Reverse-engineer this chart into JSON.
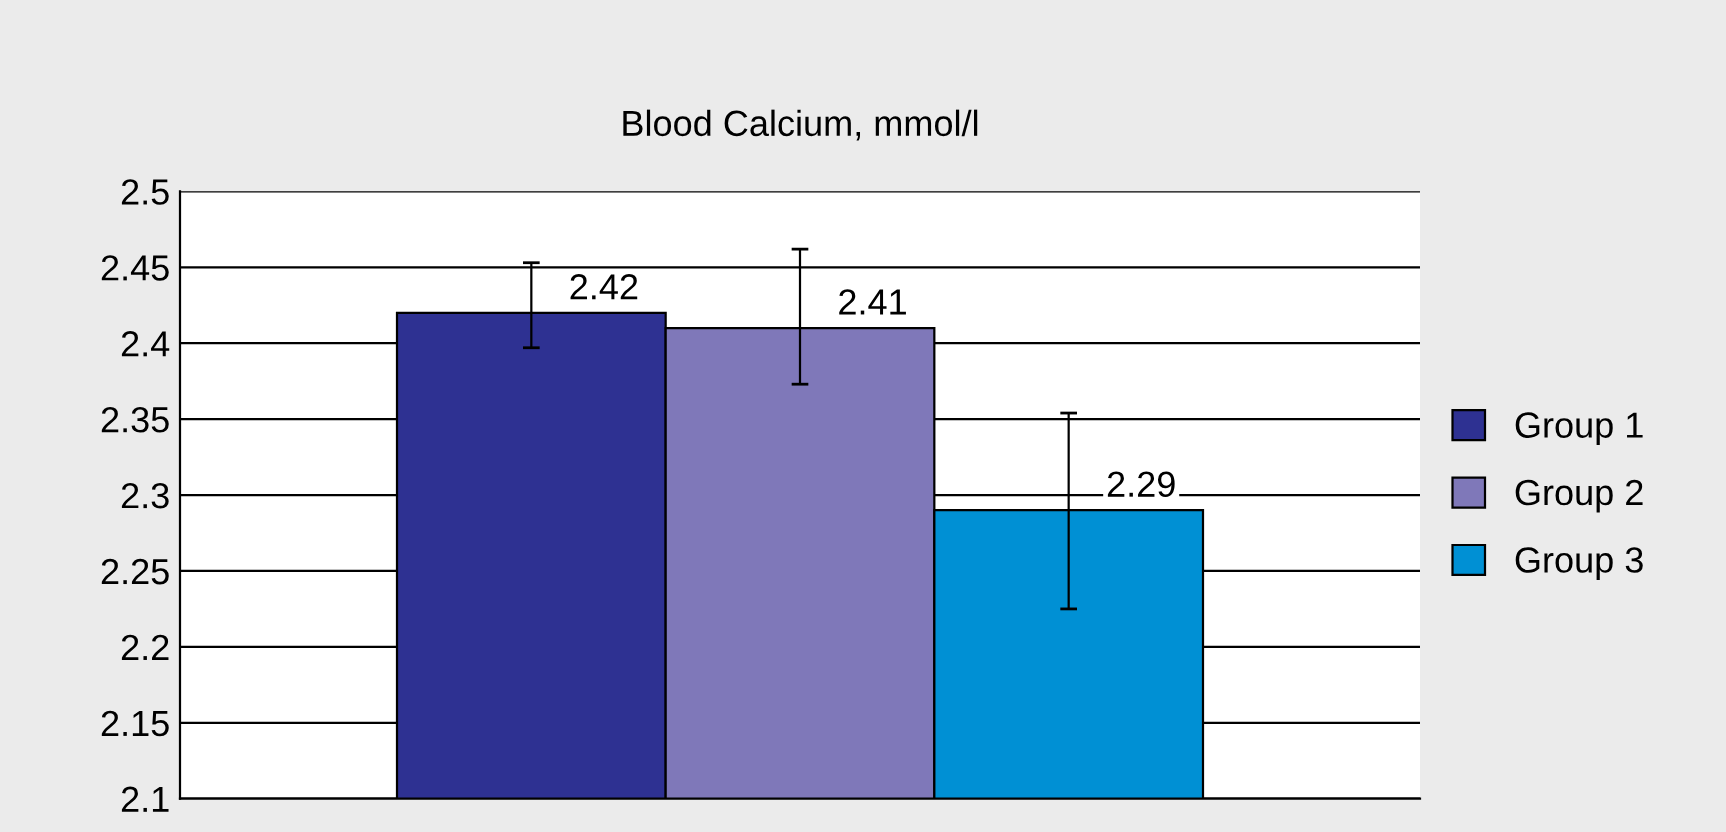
{
  "chart_data": {
    "type": "bar",
    "title": "Blood Calcium, mmol/l",
    "categories": [
      null
    ],
    "series": [
      {
        "name": "Group 1",
        "color": "#2e3192",
        "values": [
          2.42
        ],
        "value_labels": [
          "2.42"
        ],
        "errors": [
          [
            2.397,
            2.453
          ]
        ]
      },
      {
        "name": "Group 2",
        "color": "#7f78b9",
        "values": [
          2.41
        ],
        "value_labels": [
          "2.41"
        ],
        "errors": [
          [
            2.373,
            2.462
          ]
        ]
      },
      {
        "name": "Group 3",
        "color": "#0090d4",
        "values": [
          2.29
        ],
        "value_labels": [
          "2.29"
        ],
        "errors": [
          [
            2.225,
            2.354
          ]
        ]
      }
    ],
    "ylim": [
      2.1,
      2.5
    ],
    "yticks": [
      2.1,
      2.15,
      2.2,
      2.25,
      2.3,
      2.35,
      2.4,
      2.45,
      2.5
    ],
    "grid": "y",
    "legend": "right"
  }
}
